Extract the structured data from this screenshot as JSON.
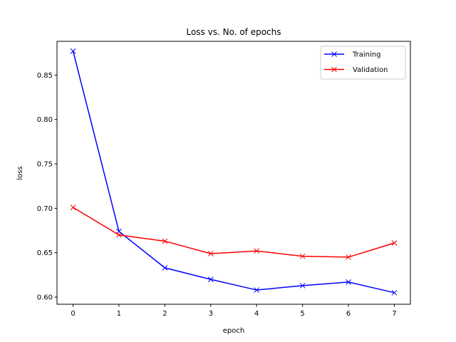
{
  "chart_data": {
    "type": "line",
    "title": "Loss vs. No. of epochs",
    "xlabel": "epoch",
    "ylabel": "loss",
    "x": [
      0,
      1,
      2,
      3,
      4,
      5,
      6,
      7
    ],
    "xticks": [
      "0",
      "1",
      "2",
      "3",
      "4",
      "5",
      "6",
      "7"
    ],
    "yticks": [
      "0.60",
      "0.65",
      "0.70",
      "0.75",
      "0.80",
      "0.85"
    ],
    "ylim": [
      0.592,
      0.888
    ],
    "xlim": [
      -0.35,
      7.35
    ],
    "grid": false,
    "legend_position": "top-right",
    "series": [
      {
        "name": "Training",
        "color": "#0000ff",
        "marker": "x",
        "values": [
          0.877,
          0.674,
          0.633,
          0.62,
          0.608,
          0.613,
          0.617,
          0.605
        ]
      },
      {
        "name": "Validation",
        "color": "#ff0000",
        "marker": "x",
        "values": [
          0.701,
          0.67,
          0.663,
          0.649,
          0.652,
          0.646,
          0.645,
          0.661
        ]
      }
    ]
  }
}
